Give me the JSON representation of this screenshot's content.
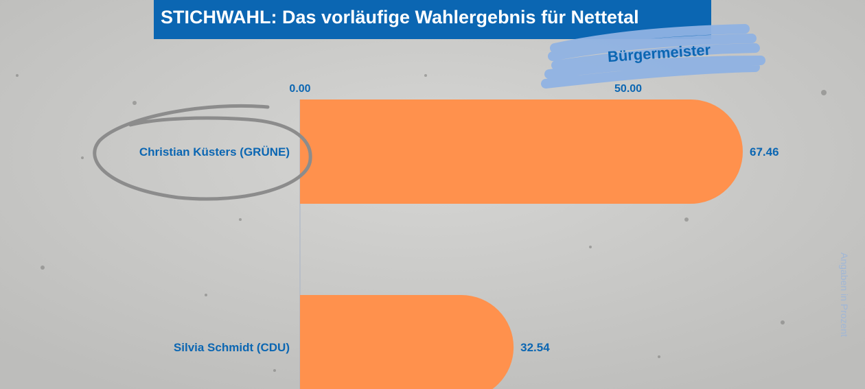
{
  "header": {
    "title": "STICHWAHL: Das vorläufige Wahlergebnis für Nettetal",
    "subtitle": "Bürgermeister"
  },
  "note": "Angaben in Prozent",
  "colors": {
    "title_bg": "#0b66b2",
    "label_text": "#0b66b2",
    "bar": "#ff914d",
    "marker_stroke": "#8c8c8c",
    "subtitle_marker": "#8fb2e3"
  },
  "chart_data": {
    "type": "bar",
    "orientation": "horizontal",
    "categories": [
      "Christian Küsters (GRÜNE)",
      "Silvia Schmidt (CDU)"
    ],
    "values": [
      67.46,
      32.54
    ],
    "value_labels": [
      "67.46",
      "32.54"
    ],
    "x_ticks": [
      "0.00",
      "50.00"
    ],
    "xlim": [
      0,
      67.46
    ],
    "grid": false,
    "highlighted_category": "Christian Küsters (GRÜNE)"
  }
}
